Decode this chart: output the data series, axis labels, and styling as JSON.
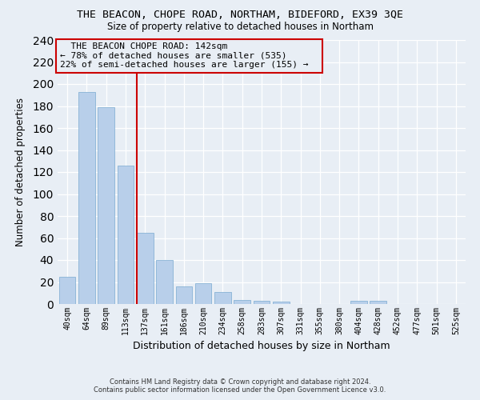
{
  "title": "THE BEACON, CHOPE ROAD, NORTHAM, BIDEFORD, EX39 3QE",
  "subtitle": "Size of property relative to detached houses in Northam",
  "xlabel": "Distribution of detached houses by size in Northam",
  "ylabel": "Number of detached properties",
  "bin_labels": [
    "40sqm",
    "64sqm",
    "89sqm",
    "113sqm",
    "137sqm",
    "161sqm",
    "186sqm",
    "210sqm",
    "234sqm",
    "258sqm",
    "283sqm",
    "307sqm",
    "331sqm",
    "355sqm",
    "380sqm",
    "404sqm",
    "428sqm",
    "452sqm",
    "477sqm",
    "501sqm",
    "525sqm"
  ],
  "bar_heights": [
    25,
    193,
    179,
    126,
    65,
    40,
    16,
    19,
    11,
    4,
    3,
    2,
    0,
    0,
    0,
    3,
    3,
    0,
    0,
    0,
    0
  ],
  "marker_bin_index": 4,
  "annotation_line1": "THE BEACON CHOPE ROAD: 142sqm",
  "annotation_line2": "← 78% of detached houses are smaller (535)",
  "annotation_line3": "22% of semi-detached houses are larger (155) →",
  "footer_line1": "Contains HM Land Registry data © Crown copyright and database right 2024.",
  "footer_line2": "Contains public sector information licensed under the Open Government Licence v3.0.",
  "bg_color": "#e8eef5",
  "bar_color": "#b8cfea",
  "bar_edge_color": "#7aaad0",
  "grid_color": "#ffffff",
  "vline_color": "#cc0000",
  "annotation_box_color": "#cc0000",
  "ylim": [
    0,
    240
  ],
  "yticks": [
    0,
    20,
    40,
    60,
    80,
    100,
    120,
    140,
    160,
    180,
    200,
    220,
    240
  ]
}
